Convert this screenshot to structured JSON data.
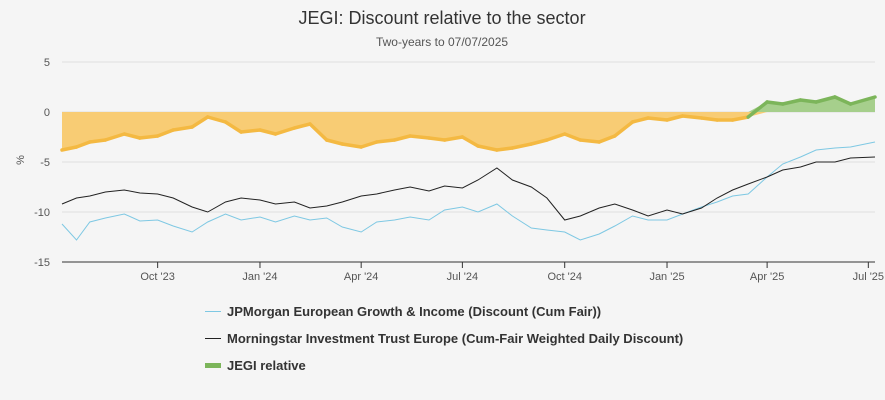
{
  "colors": {
    "background": "#f5f5f5",
    "jpm_line": "#7ec8e3",
    "mit_line": "#222222",
    "relative_positive": "#7cb55a",
    "relative_positive_fill": "#a6cf8c",
    "relative_negative": "#f4b942",
    "relative_negative_fill": "#f8cc74",
    "grid": "#e0e0e0",
    "axis": "#333333"
  },
  "chart_data": {
    "type": "line",
    "title": "JEGI: Discount relative to the sector",
    "subtitle": "Two-years to 07/07/2025",
    "ylabel": "%",
    "xlabel": "",
    "ylim": [
      -15,
      5
    ],
    "yticks": [
      5,
      0,
      -5,
      -10,
      -15
    ],
    "xlim": [
      "2023-07-07",
      "2025-07-07"
    ],
    "xticks": [
      {
        "date": "2023-10-01",
        "label": "Oct '23"
      },
      {
        "date": "2024-01-01",
        "label": "Jan '24"
      },
      {
        "date": "2024-04-01",
        "label": "Apr '24"
      },
      {
        "date": "2024-07-01",
        "label": "Jul '24"
      },
      {
        "date": "2024-10-01",
        "label": "Oct '24"
      },
      {
        "date": "2025-01-01",
        "label": "Jan '25"
      },
      {
        "date": "2025-04-01",
        "label": "Apr '25"
      },
      {
        "date": "2025-07-01",
        "label": "Jul '25"
      }
    ],
    "grid": true,
    "legend_position": "bottom",
    "series": [
      {
        "name": "JPMorgan European Growth & Income (Discount (Cum Fair))",
        "style": "thin-line",
        "points": [
          [
            "2023-07-07",
            -11.2
          ],
          [
            "2023-07-20",
            -12.8
          ],
          [
            "2023-08-01",
            -11.0
          ],
          [
            "2023-08-15",
            -10.6
          ],
          [
            "2023-09-01",
            -10.2
          ],
          [
            "2023-09-15",
            -10.9
          ],
          [
            "2023-10-01",
            -10.8
          ],
          [
            "2023-10-15",
            -11.4
          ],
          [
            "2023-11-01",
            -12.0
          ],
          [
            "2023-11-15",
            -11.0
          ],
          [
            "2023-12-01",
            -10.2
          ],
          [
            "2023-12-15",
            -10.8
          ],
          [
            "2024-01-01",
            -10.5
          ],
          [
            "2024-01-15",
            -11.0
          ],
          [
            "2024-02-01",
            -10.4
          ],
          [
            "2024-02-15",
            -10.8
          ],
          [
            "2024-03-01",
            -10.6
          ],
          [
            "2024-03-15",
            -11.5
          ],
          [
            "2024-04-01",
            -12.0
          ],
          [
            "2024-04-15",
            -11.0
          ],
          [
            "2024-05-01",
            -10.8
          ],
          [
            "2024-05-15",
            -10.5
          ],
          [
            "2024-06-01",
            -10.8
          ],
          [
            "2024-06-15",
            -9.8
          ],
          [
            "2024-07-01",
            -9.5
          ],
          [
            "2024-07-15",
            -10.0
          ],
          [
            "2024-08-01",
            -9.2
          ],
          [
            "2024-08-15",
            -10.4
          ],
          [
            "2024-09-01",
            -11.6
          ],
          [
            "2024-09-15",
            -11.8
          ],
          [
            "2024-10-01",
            -12.0
          ],
          [
            "2024-10-15",
            -12.8
          ],
          [
            "2024-11-01",
            -12.2
          ],
          [
            "2024-11-15",
            -11.4
          ],
          [
            "2024-12-01",
            -10.4
          ],
          [
            "2024-12-15",
            -10.8
          ],
          [
            "2025-01-01",
            -10.8
          ],
          [
            "2025-01-15",
            -10.2
          ],
          [
            "2025-02-01",
            -9.5
          ],
          [
            "2025-02-15",
            -9.0
          ],
          [
            "2025-03-01",
            -8.4
          ],
          [
            "2025-03-15",
            -8.2
          ],
          [
            "2025-04-01",
            -6.5
          ],
          [
            "2025-04-15",
            -5.2
          ],
          [
            "2025-05-01",
            -4.5
          ],
          [
            "2025-05-15",
            -3.8
          ],
          [
            "2025-06-01",
            -3.6
          ],
          [
            "2025-06-15",
            -3.5
          ],
          [
            "2025-07-07",
            -3.0
          ]
        ]
      },
      {
        "name": "Morningstar Investment Trust Europe (Cum-Fair Weighted Daily Discount)",
        "style": "thin-line",
        "points": [
          [
            "2023-07-07",
            -9.2
          ],
          [
            "2023-07-20",
            -8.6
          ],
          [
            "2023-08-01",
            -8.4
          ],
          [
            "2023-08-15",
            -8.0
          ],
          [
            "2023-09-01",
            -7.8
          ],
          [
            "2023-09-15",
            -8.1
          ],
          [
            "2023-10-01",
            -8.2
          ],
          [
            "2023-10-15",
            -8.6
          ],
          [
            "2023-11-01",
            -9.5
          ],
          [
            "2023-11-15",
            -10.0
          ],
          [
            "2023-12-01",
            -9.0
          ],
          [
            "2023-12-15",
            -8.6
          ],
          [
            "2024-01-01",
            -8.8
          ],
          [
            "2024-01-15",
            -9.2
          ],
          [
            "2024-02-01",
            -9.0
          ],
          [
            "2024-02-15",
            -9.6
          ],
          [
            "2024-03-01",
            -9.4
          ],
          [
            "2024-03-15",
            -9.0
          ],
          [
            "2024-04-01",
            -8.4
          ],
          [
            "2024-04-15",
            -8.2
          ],
          [
            "2024-05-01",
            -7.8
          ],
          [
            "2024-05-15",
            -7.5
          ],
          [
            "2024-06-01",
            -7.9
          ],
          [
            "2024-06-15",
            -7.4
          ],
          [
            "2024-07-01",
            -7.6
          ],
          [
            "2024-07-15",
            -6.8
          ],
          [
            "2024-08-01",
            -5.6
          ],
          [
            "2024-08-15",
            -6.8
          ],
          [
            "2024-09-01",
            -7.5
          ],
          [
            "2024-09-15",
            -8.6
          ],
          [
            "2024-10-01",
            -10.8
          ],
          [
            "2024-10-15",
            -10.4
          ],
          [
            "2024-11-01",
            -9.6
          ],
          [
            "2024-11-15",
            -9.2
          ],
          [
            "2024-12-01",
            -9.8
          ],
          [
            "2024-12-15",
            -10.4
          ],
          [
            "2025-01-01",
            -9.8
          ],
          [
            "2025-01-15",
            -10.2
          ],
          [
            "2025-02-01",
            -9.6
          ],
          [
            "2025-02-15",
            -8.6
          ],
          [
            "2025-03-01",
            -7.8
          ],
          [
            "2025-03-15",
            -7.2
          ],
          [
            "2025-04-01",
            -6.5
          ],
          [
            "2025-04-15",
            -5.8
          ],
          [
            "2025-05-01",
            -5.5
          ],
          [
            "2025-05-15",
            -5.0
          ],
          [
            "2025-06-01",
            -5.0
          ],
          [
            "2025-06-15",
            -4.6
          ],
          [
            "2025-07-07",
            -4.5
          ]
        ]
      },
      {
        "name": "JEGI relative",
        "style": "thick-area",
        "points": [
          [
            "2023-07-07",
            -3.8
          ],
          [
            "2023-07-20",
            -3.5
          ],
          [
            "2023-08-01",
            -3.0
          ],
          [
            "2023-08-15",
            -2.8
          ],
          [
            "2023-09-01",
            -2.2
          ],
          [
            "2023-09-15",
            -2.6
          ],
          [
            "2023-10-01",
            -2.4
          ],
          [
            "2023-10-15",
            -1.8
          ],
          [
            "2023-11-01",
            -1.5
          ],
          [
            "2023-11-15",
            -0.5
          ],
          [
            "2023-12-01",
            -1.0
          ],
          [
            "2023-12-15",
            -2.0
          ],
          [
            "2024-01-01",
            -1.8
          ],
          [
            "2024-01-15",
            -2.2
          ],
          [
            "2024-02-01",
            -1.6
          ],
          [
            "2024-02-15",
            -1.2
          ],
          [
            "2024-03-01",
            -2.8
          ],
          [
            "2024-03-15",
            -3.2
          ],
          [
            "2024-04-01",
            -3.5
          ],
          [
            "2024-04-15",
            -3.0
          ],
          [
            "2024-05-01",
            -2.8
          ],
          [
            "2024-05-15",
            -2.4
          ],
          [
            "2024-06-01",
            -2.6
          ],
          [
            "2024-06-15",
            -2.8
          ],
          [
            "2024-07-01",
            -2.5
          ],
          [
            "2024-07-15",
            -3.4
          ],
          [
            "2024-08-01",
            -3.8
          ],
          [
            "2024-08-15",
            -3.6
          ],
          [
            "2024-09-01",
            -3.2
          ],
          [
            "2024-09-15",
            -2.8
          ],
          [
            "2024-10-01",
            -2.2
          ],
          [
            "2024-10-15",
            -2.8
          ],
          [
            "2024-11-01",
            -3.0
          ],
          [
            "2024-11-15",
            -2.4
          ],
          [
            "2024-12-01",
            -1.0
          ],
          [
            "2024-12-15",
            -0.6
          ],
          [
            "2025-01-01",
            -0.8
          ],
          [
            "2025-01-15",
            -0.4
          ],
          [
            "2025-02-01",
            -0.6
          ],
          [
            "2025-02-15",
            -0.8
          ],
          [
            "2025-03-01",
            -0.8
          ],
          [
            "2025-03-15",
            -0.5
          ],
          [
            "2025-04-01",
            1.0
          ],
          [
            "2025-04-15",
            0.8
          ],
          [
            "2025-05-01",
            1.2
          ],
          [
            "2025-05-15",
            1.0
          ],
          [
            "2025-06-01",
            1.5
          ],
          [
            "2025-06-15",
            0.8
          ],
          [
            "2025-07-07",
            1.5
          ]
        ]
      }
    ]
  },
  "legend": {
    "jpm": "JPMorgan European Growth & Income (Discount (Cum Fair))",
    "mit": "Morningstar Investment Trust Europe (Cum-Fair Weighted Daily Discount)",
    "rel": "JEGI relative"
  }
}
